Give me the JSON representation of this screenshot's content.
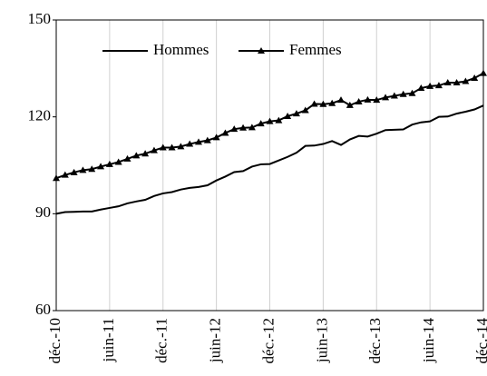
{
  "chart_data": {
    "type": "line",
    "categories": [
      "déc.-10",
      null,
      null,
      null,
      null,
      null,
      "juin-11",
      null,
      null,
      null,
      null,
      null,
      "déc.-11",
      null,
      null,
      null,
      null,
      null,
      "juin-12",
      null,
      null,
      null,
      null,
      null,
      "déc.-12",
      null,
      null,
      null,
      null,
      null,
      "juin-13",
      null,
      null,
      null,
      null,
      null,
      "déc.-13",
      null,
      null,
      null,
      null,
      null,
      "juin-14",
      null,
      null,
      null,
      null,
      null,
      "déc.-14"
    ],
    "series": [
      {
        "name": "Hommes",
        "color": "#000000",
        "marker": "none",
        "values": [
          90.0,
          90.5,
          90.6,
          90.7,
          90.7,
          91.3,
          91.8,
          92.3,
          93.2,
          93.8,
          94.3,
          95.5,
          96.3,
          96.7,
          97.5,
          98.0,
          98.3,
          98.8,
          100.3,
          101.5,
          102.9,
          103.2,
          104.6,
          105.3,
          105.4,
          106.5,
          107.6,
          108.9,
          111.0,
          111.1,
          111.6,
          112.5,
          111.3,
          113.0,
          114.1,
          113.9,
          114.8,
          115.9,
          116.0,
          116.1,
          117.6,
          118.3,
          118.6,
          120.0,
          120.1,
          121.0,
          121.6,
          122.3,
          123.5
        ]
      },
      {
        "name": "Femmes",
        "color": "#000000",
        "marker": "triangle",
        "values": [
          101.0,
          102.0,
          102.8,
          103.5,
          103.8,
          104.6,
          105.3,
          106.0,
          107.0,
          108.0,
          108.6,
          109.6,
          110.5,
          110.5,
          110.8,
          111.6,
          112.2,
          112.7,
          113.6,
          115.0,
          116.2,
          116.6,
          116.7,
          117.9,
          118.6,
          118.9,
          120.2,
          121.0,
          122.0,
          124.0,
          123.9,
          124.2,
          125.2,
          123.6,
          124.7,
          125.3,
          125.2,
          126.0,
          126.5,
          127.0,
          127.3,
          128.9,
          129.5,
          129.7,
          130.6,
          130.6,
          131.0,
          132.0,
          133.5
        ]
      }
    ],
    "ylim": [
      60,
      150
    ],
    "yticks": [
      60,
      90,
      120,
      150
    ],
    "grid": "x"
  }
}
